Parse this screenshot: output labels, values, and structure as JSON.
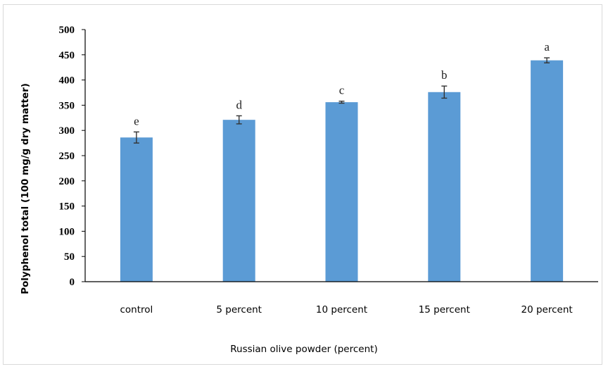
{
  "chart_data": {
    "type": "bar",
    "title": "",
    "xlabel": "Russian olive powder (percent)",
    "ylabel": "Polyphenol total  (100 mg/g dry matter)",
    "ylim": [
      0,
      500
    ],
    "yticks": [
      0,
      50,
      100,
      150,
      200,
      250,
      300,
      350,
      400,
      450,
      500
    ],
    "categories": [
      "control",
      "5 percent",
      "10 percent",
      "15 percent",
      "20 percent"
    ],
    "values": [
      286,
      321,
      356,
      376,
      439
    ],
    "error": [
      11,
      8,
      2,
      12,
      5
    ],
    "significance_letters": [
      "e",
      "d",
      "c",
      "b",
      "a"
    ],
    "bar_color": "#5b9bd5",
    "grid": false,
    "legend": "none"
  }
}
